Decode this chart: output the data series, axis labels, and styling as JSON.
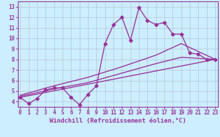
{
  "xlabel": "Windchill (Refroidissement éolien,°C)",
  "background_color": "#cceeff",
  "line_color": "#993399",
  "x_ticks": [
    0,
    1,
    2,
    3,
    4,
    5,
    6,
    7,
    8,
    9,
    10,
    11,
    12,
    13,
    14,
    15,
    16,
    17,
    18,
    19,
    20,
    21,
    22,
    23
  ],
  "y_ticks": [
    4,
    5,
    6,
    7,
    8,
    9,
    10,
    11,
    12,
    13
  ],
  "ylim": [
    3.5,
    13.5
  ],
  "xlim": [
    -0.3,
    23.3
  ],
  "line1_x": [
    0,
    1,
    2,
    3,
    4,
    5,
    6,
    7,
    8,
    9,
    10,
    11,
    12,
    13,
    14,
    15,
    16,
    17,
    18,
    19,
    20,
    21,
    22,
    23
  ],
  "line1_y": [
    4.4,
    3.8,
    4.3,
    5.1,
    5.3,
    5.3,
    4.4,
    3.7,
    4.7,
    5.5,
    9.5,
    11.3,
    12.0,
    9.8,
    12.9,
    11.7,
    11.3,
    11.5,
    10.4,
    10.4,
    8.6,
    8.5,
    8.0,
    8.0
  ],
  "line2_x": [
    0,
    23
  ],
  "line2_y": [
    4.4,
    8.0
  ],
  "line3_x": [
    0,
    4,
    8,
    12,
    16,
    19,
    23
  ],
  "line3_y": [
    4.5,
    5.2,
    5.8,
    6.7,
    7.6,
    8.2,
    8.0
  ],
  "line4_x": [
    0,
    4,
    8,
    12,
    16,
    19,
    23
  ],
  "line4_y": [
    4.6,
    5.5,
    6.3,
    7.3,
    8.4,
    9.5,
    8.0
  ],
  "grid_color": "#999999",
  "marker": "D",
  "marker_size": 2.5,
  "line_width": 1.0,
  "tick_fontsize": 5.5,
  "xlabel_fontsize": 6.5
}
